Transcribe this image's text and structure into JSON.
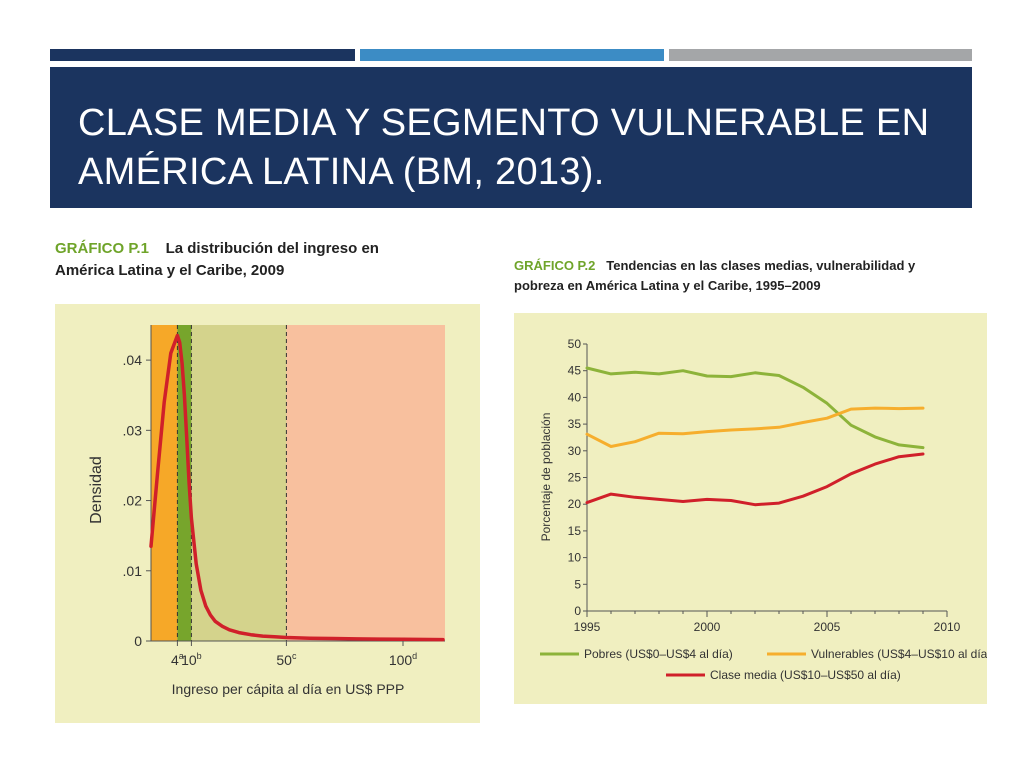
{
  "slide": {
    "title_line1": "CLASE MEDIA Y SEGMENTO VULNERABLE EN",
    "title_line2": "AMÉRICA LATINA (BM, 2013).",
    "colors": {
      "navy": "#1b345f",
      "blue": "#3c8cc5",
      "gray": "#a4a6a8",
      "panel": "#f0efc0"
    }
  },
  "chart1_caption": {
    "label": "GRÁFICO P.1",
    "line1": "La distribución del ingreso en",
    "line2": "América Latina y el Caribe, 2009"
  },
  "chart2_caption": {
    "label": "GRÁFICO P.2",
    "line1": "Tendencias en las clases medias, vulnerabilidad y",
    "line2": "pobreza en América Latina y el Caribe, 1995–2009"
  },
  "chart_data": [
    {
      "type": "area",
      "title": "La distribución del ingreso en América Latina y el Caribe, 2009",
      "xlabel": "Ingreso per cápita al día en US$ PPP",
      "ylabel": "Densidad",
      "ylim": [
        0,
        0.045
      ],
      "yticks": [
        0,
        0.01,
        0.02,
        0.03,
        0.04
      ],
      "ytick_labels": [
        "0",
        ".01",
        ".02",
        ".03",
        ".04"
      ],
      "xticks": [
        {
          "value": 4,
          "label": "4",
          "sup": "a"
        },
        {
          "value": 10,
          "label": "10",
          "sup": "b"
        },
        {
          "value": 50,
          "label": "50",
          "sup": "c"
        },
        {
          "value": 100,
          "label": "100",
          "sup": "d"
        }
      ],
      "bands": [
        {
          "from": 0,
          "to": 4,
          "color": "#f6a828"
        },
        {
          "from": 4,
          "to": 10,
          "color": "#77a52c"
        },
        {
          "from": 10,
          "to": 50,
          "color": "#d4d38c"
        },
        {
          "from": 50,
          "to": 120,
          "color": "#f8c09e"
        }
      ],
      "series": [
        {
          "name": "Densidad",
          "color": "#d0202a",
          "x": [
            0,
            1,
            2,
            3,
            4,
            5,
            6,
            7,
            8,
            9,
            10,
            12,
            14,
            16,
            18,
            20,
            23,
            26,
            30,
            35,
            40,
            45,
            50,
            60,
            70,
            80,
            90,
            100,
            110,
            115
          ],
          "y": [
            0.0135,
            0.024,
            0.034,
            0.041,
            0.0435,
            0.0425,
            0.0395,
            0.035,
            0.029,
            0.0225,
            0.0175,
            0.011,
            0.0072,
            0.005,
            0.0037,
            0.0028,
            0.0021,
            0.0016,
            0.0012,
            0.0009,
            0.0007,
            0.0006,
            0.0005,
            0.0004,
            0.00035,
            0.0003,
            0.00027,
            0.00025,
            0.00022,
            0.0002
          ]
        }
      ]
    },
    {
      "type": "line",
      "title": "Tendencias en las clases medias, vulnerabilidad y pobreza en América Latina y el Caribe, 1995–2009",
      "xlabel": "",
      "ylabel": "Porcentaje de población",
      "xlim": [
        1995,
        2010
      ],
      "ylim": [
        0,
        50
      ],
      "xticks": [
        1995,
        2000,
        2005,
        2010
      ],
      "yticks": [
        0,
        5,
        10,
        15,
        20,
        25,
        30,
        35,
        40,
        45,
        50
      ],
      "x": [
        1995,
        1996,
        1997,
        1998,
        1999,
        2000,
        2001,
        2002,
        2003,
        2004,
        2005,
        2006,
        2007,
        2008,
        2009
      ],
      "series": [
        {
          "name": "Pobres (US$0–US$4 al día)",
          "color": "#8db33a",
          "values": [
            45.5,
            44.4,
            44.7,
            44.4,
            45.0,
            44.0,
            43.9,
            44.6,
            44.1,
            41.9,
            38.9,
            34.8,
            32.6,
            31.1,
            30.6
          ]
        },
        {
          "name": "Vulnerables (US$4–US$10 al día)",
          "color": "#f6ae2d",
          "values": [
            33.1,
            30.8,
            31.7,
            33.3,
            33.2,
            33.6,
            33.9,
            34.1,
            34.4,
            35.3,
            36.1,
            37.8,
            38.0,
            37.9,
            38.0
          ]
        },
        {
          "name": "Clase media (US$10–US$50 al día)",
          "color": "#d0202a",
          "values": [
            20.3,
            21.9,
            21.3,
            20.9,
            20.5,
            20.9,
            20.7,
            19.9,
            20.2,
            21.5,
            23.3,
            25.7,
            27.5,
            28.9,
            29.4
          ]
        }
      ]
    }
  ]
}
